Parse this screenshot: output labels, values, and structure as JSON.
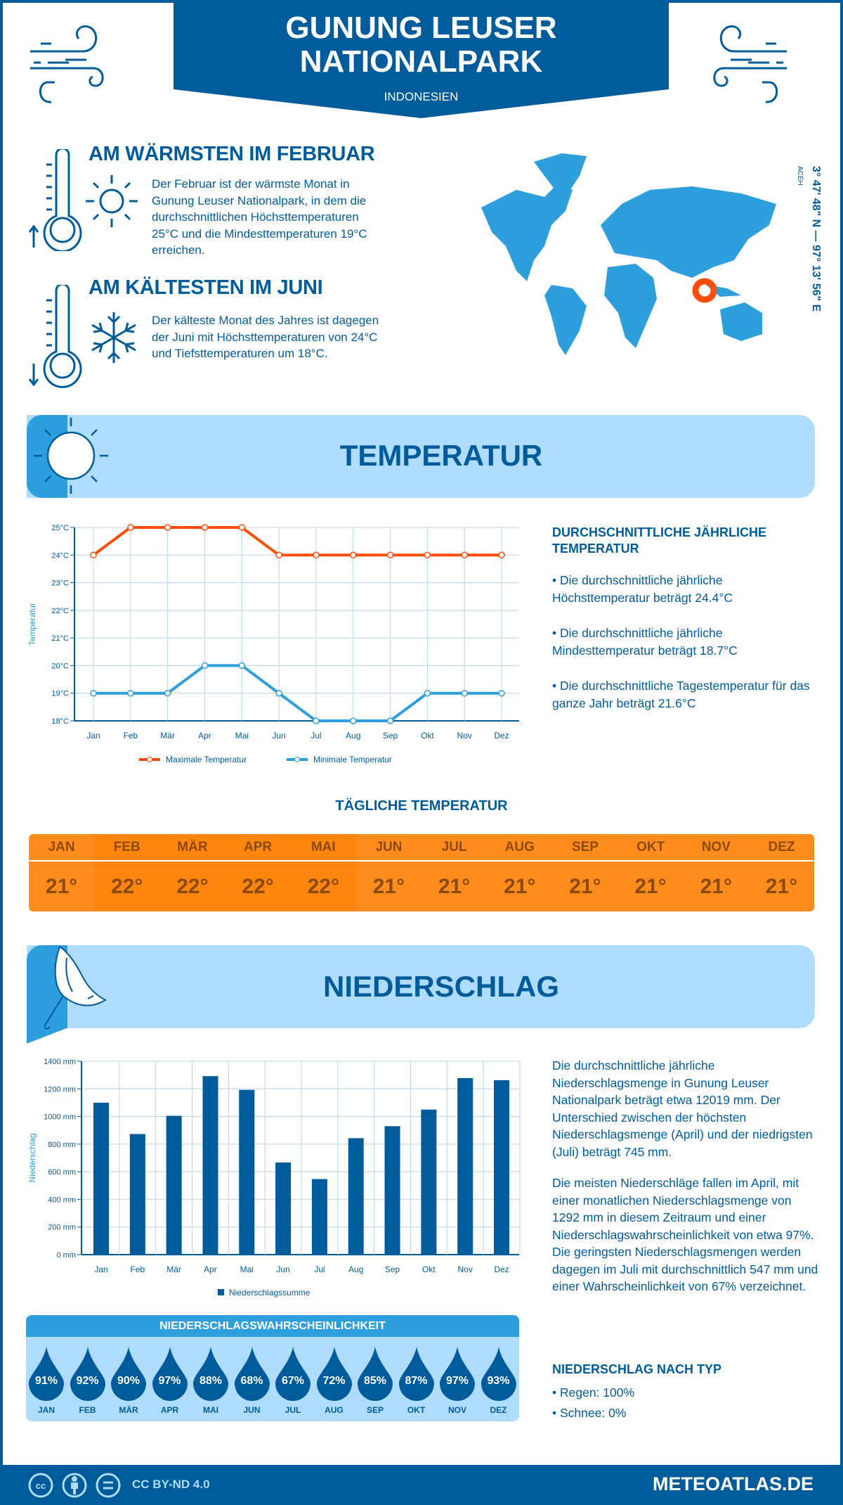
{
  "header": {
    "title_line1": "GUNUNG LEUSER",
    "title_line2": "NATIONALPARK",
    "country": "INDONESIEN"
  },
  "warmest": {
    "heading": "AM WÄRMSTEN IM FEBRUAR",
    "lines": [
      "Der Februar ist der wärmste Monat in",
      "Gunung Leuser Nationalpark, in dem die",
      "durchschnittlichen Höchsttemperaturen",
      "25°C und die Mindesttemperaturen 19°C",
      "erreichen."
    ]
  },
  "coldest": {
    "heading": "AM KÄLTESTEN IM JUNI",
    "lines": [
      "Der kälteste Monat des Jahres ist dagegen",
      "der Juni mit Höchsttemperaturen von 24°C",
      "und Tiefsttemperaturen um 18°C."
    ]
  },
  "map": {
    "coordinates": "3° 47' 48\" N — 97° 13' 56\" E",
    "region": "ACEH",
    "marker_color": "#ff4e0a"
  },
  "temperature_section": {
    "title": "TEMPERATUR"
  },
  "temperature_summary": {
    "heading": "DURCHSCHNITTLICHE JÄHRLICHE TEMPERATUR",
    "bullets": [
      "• Die durchschnittliche jährliche Höchsttemperatur beträgt 24.4°C",
      "• Die durchschnittliche jährliche Mindesttemperatur beträgt 18.7°C",
      "• Die durchschnittliche Tagestemperatur für das ganze Jahr beträgt 21.6°C"
    ]
  },
  "daily_temperature": {
    "title": "TÄGLICHE TEMPERATUR",
    "months": [
      "JAN",
      "FEB",
      "MÄR",
      "APR",
      "MAI",
      "JUN",
      "JUL",
      "AUG",
      "SEP",
      "OKT",
      "NOV",
      "DEZ"
    ],
    "values": [
      "21°",
      "22°",
      "22°",
      "22°",
      "22°",
      "21°",
      "21°",
      "21°",
      "21°",
      "21°",
      "21°",
      "21°"
    ]
  },
  "precipitation_section": {
    "title": "NIEDERSCHLAG"
  },
  "precipitation_text": {
    "p1": "Die durchschnittliche jährliche Niederschlagsmenge in Gunung Leuser Nationalpark beträgt etwa 12019 mm. Der Unterschied zwischen der höchsten Niederschlagsmenge (April) und der niedrigsten (Juli) beträgt 745 mm.",
    "p2": "Die meisten Niederschläge fallen im April, mit einer monatlichen Niederschlagsmenge von 1292 mm in diesem Zeitraum und einer Niederschlagswahrscheinlichkeit von etwa 97%. Die geringsten Niederschlagsmengen werden dagegen im Juli mit durchschnittlich 547 mm und einer Wahrscheinlichkeit von 67% verzeichnet."
  },
  "precip_type": {
    "heading": "NIEDERSCHLAG NACH TYP",
    "items": [
      "• Regen: 100%",
      "• Schnee: 0%"
    ]
  },
  "precip_probability": {
    "title": "NIEDERSCHLAGSWAHRSCHEINLICHKEIT",
    "months": [
      "JAN",
      "FEB",
      "MÄR",
      "APR",
      "MAI",
      "JUN",
      "JUL",
      "AUG",
      "SEP",
      "OKT",
      "NOV",
      "DEZ"
    ],
    "values": [
      "91%",
      "92%",
      "90%",
      "97%",
      "88%",
      "68%",
      "67%",
      "72%",
      "85%",
      "87%",
      "97%",
      "93%"
    ]
  },
  "footer": {
    "license": "CC BY-ND 4.0",
    "site": "METEOATLAS.DE"
  },
  "colors": {
    "dark_blue": "#005b9a",
    "light_blue": "#2e9fdd",
    "pale_blue": "#b0dcfc",
    "orange": "#ff8a12",
    "max_line": "#ff4e0a",
    "min_line": "#2e9fdd"
  },
  "chart_data": [
    {
      "type": "line",
      "ylabel": "Temperatur",
      "categories": [
        "Jan",
        "Feb",
        "Mär",
        "Apr",
        "Mai",
        "Jun",
        "Jul",
        "Aug",
        "Sep",
        "Okt",
        "Nov",
        "Dez"
      ],
      "ylim": [
        18,
        25
      ],
      "yticks": [
        "18°C",
        "19°C",
        "20°C",
        "21°C",
        "22°C",
        "23°C",
        "24°C",
        "25°C"
      ],
      "grid": true,
      "legend": "bottom",
      "series": [
        {
          "name": "Maximale Temperatur",
          "color": "#ff4e0a",
          "values": [
            24,
            25,
            25,
            25,
            25,
            24,
            24,
            24,
            24,
            24,
            24,
            24
          ]
        },
        {
          "name": "Minimale Temperatur",
          "color": "#2e9fdd",
          "values": [
            19,
            19,
            19,
            20,
            20,
            19,
            18,
            18,
            18,
            19,
            19,
            19
          ]
        }
      ]
    },
    {
      "type": "bar",
      "ylabel": "Niederschlag",
      "categories": [
        "Jan",
        "Feb",
        "Mär",
        "Apr",
        "Mai",
        "Jun",
        "Jul",
        "Aug",
        "Sep",
        "Okt",
        "Nov",
        "Dez"
      ],
      "ylim": [
        0,
        1400
      ],
      "yticks": [
        "0 mm",
        "200 mm",
        "400 mm",
        "600 mm",
        "800 mm",
        "1000 mm",
        "1200 mm",
        "1400 mm"
      ],
      "grid": true,
      "legend": "bottom",
      "series": [
        {
          "name": "Niederschlagssumme",
          "color": "#005b9a",
          "values": [
            1100,
            873,
            1005,
            1292,
            1193,
            667,
            547,
            843,
            930,
            1050,
            1278,
            1263
          ]
        }
      ]
    }
  ]
}
